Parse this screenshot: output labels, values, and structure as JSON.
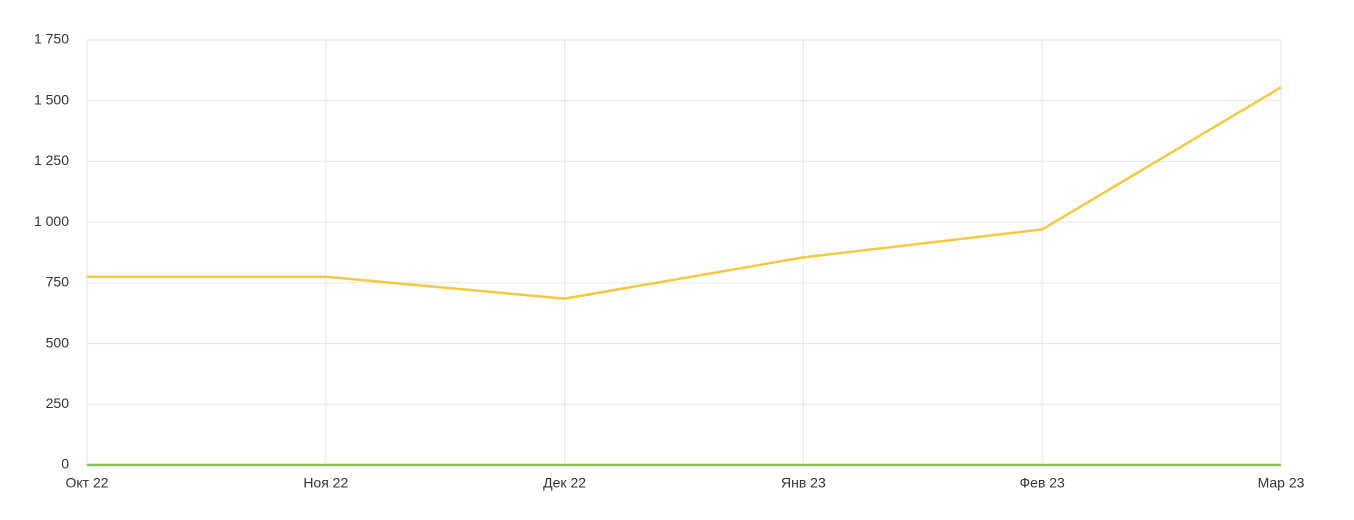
{
  "chart_data": {
    "type": "line",
    "categories": [
      "Окт 22",
      "Ноя 22",
      "Дек 22",
      "Янв 23",
      "Фев 23",
      "Мар 23"
    ],
    "series": [
      {
        "color": "#f5c842",
        "values": [
          775,
          775,
          685,
          855,
          970,
          1555
        ]
      },
      {
        "color": "#8cc152",
        "values": [
          0,
          0,
          0,
          0,
          0,
          0
        ]
      }
    ],
    "ylim": [
      0,
      1750
    ],
    "yticks": [
      0,
      250,
      500,
      750,
      {
        "value": 1000,
        "label": "1 000"
      },
      {
        "value": 1250,
        "label": "1 250"
      },
      {
        "value": 1500,
        "label": "1 500"
      },
      {
        "value": 1750,
        "label": "1 750"
      }
    ],
    "grid": true
  }
}
